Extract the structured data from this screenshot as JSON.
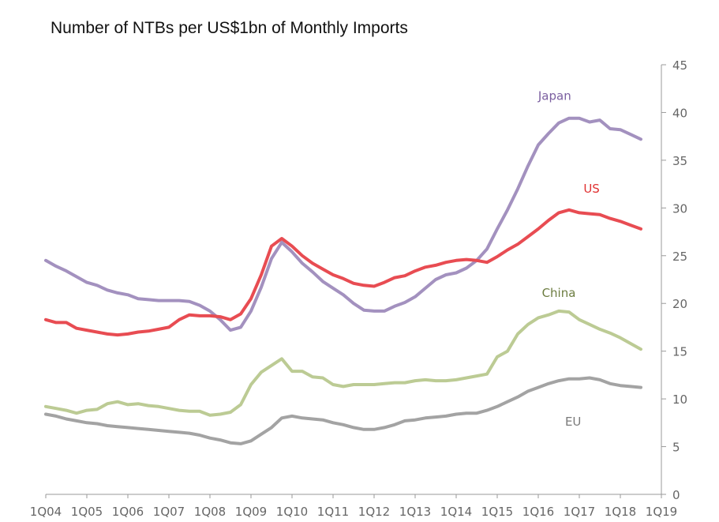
{
  "chart_data": {
    "type": "line",
    "title": "Number of NTBs per US$1bn of Monthly Imports",
    "xlabel": "",
    "ylabel": "",
    "ylim": [
      0,
      45
    ],
    "yticks": [
      "0",
      "5",
      "10",
      "15",
      "20",
      "25",
      "30",
      "35",
      "40",
      "45"
    ],
    "categories": [
      "1Q04",
      "1Q05",
      "1Q06",
      "1Q07",
      "1Q08",
      "1Q09",
      "1Q10",
      "1Q11",
      "1Q12",
      "1Q13",
      "1Q14",
      "1Q15",
      "1Q16",
      "1Q17",
      "1Q18",
      "1Q19"
    ],
    "x": [
      2004,
      2004.25,
      2004.5,
      2004.75,
      2005,
      2005.25,
      2005.5,
      2005.75,
      2006,
      2006.25,
      2006.5,
      2006.75,
      2007,
      2007.25,
      2007.5,
      2007.75,
      2008,
      2008.25,
      2008.5,
      2008.75,
      2009,
      2009.25,
      2009.5,
      2009.75,
      2010,
      2010.25,
      2010.5,
      2010.75,
      2011,
      2011.25,
      2011.5,
      2011.75,
      2012,
      2012.25,
      2012.5,
      2012.75,
      2013,
      2013.25,
      2013.5,
      2013.75,
      2014,
      2014.25,
      2014.5,
      2014.75,
      2015,
      2015.25,
      2015.5,
      2015.75,
      2016,
      2016.25,
      2016.5,
      2016.75,
      2017,
      2017.25,
      2017.5,
      2017.75,
      2018,
      2018.25,
      2018.5
    ],
    "series": [
      {
        "name": "Japan",
        "color": "#a391bf",
        "values": [
          24.5,
          23.9,
          23.4,
          22.8,
          22.2,
          21.9,
          21.4,
          21.1,
          20.9,
          20.5,
          20.4,
          20.3,
          20.3,
          20.3,
          20.2,
          19.8,
          19.2,
          18.3,
          17.2,
          17.5,
          19.2,
          21.7,
          24.7,
          26.4,
          25.4,
          24.2,
          23.3,
          22.3,
          21.6,
          20.9,
          20.0,
          19.3,
          19.2,
          19.2,
          19.7,
          20.1,
          20.7,
          21.6,
          22.5,
          23.0,
          23.2,
          23.7,
          24.5,
          25.7,
          27.8,
          29.8,
          32.0,
          34.4,
          36.6,
          37.8,
          38.9,
          39.4,
          39.4,
          39.0,
          39.2,
          38.3,
          38.2,
          37.7,
          37.2
        ]
      },
      {
        "name": "US",
        "color": "#e84c52",
        "values": [
          18.3,
          18.0,
          18.0,
          17.4,
          17.2,
          17.0,
          16.8,
          16.7,
          16.8,
          17.0,
          17.1,
          17.3,
          17.5,
          18.3,
          18.8,
          18.7,
          18.7,
          18.6,
          18.3,
          18.9,
          20.5,
          23.0,
          26.0,
          26.8,
          26.0,
          25.0,
          24.2,
          23.6,
          23.0,
          22.6,
          22.1,
          21.9,
          21.8,
          22.2,
          22.7,
          22.9,
          23.4,
          23.8,
          24.0,
          24.3,
          24.5,
          24.6,
          24.5,
          24.3,
          24.9,
          25.6,
          26.2,
          27.0,
          27.8,
          28.7,
          29.5,
          29.8,
          29.5,
          29.4,
          29.3,
          28.9,
          28.6,
          28.2,
          27.8
        ]
      },
      {
        "name": "China",
        "color": "#bccb94",
        "values": [
          9.2,
          9.0,
          8.8,
          8.5,
          8.8,
          8.9,
          9.5,
          9.7,
          9.4,
          9.5,
          9.3,
          9.2,
          9.0,
          8.8,
          8.7,
          8.7,
          8.3,
          8.4,
          8.6,
          9.4,
          11.5,
          12.8,
          13.5,
          14.2,
          12.9,
          12.9,
          12.3,
          12.2,
          11.5,
          11.3,
          11.5,
          11.5,
          11.5,
          11.6,
          11.7,
          11.7,
          11.9,
          12.0,
          11.9,
          11.9,
          12.0,
          12.2,
          12.4,
          12.6,
          14.4,
          15.0,
          16.8,
          17.8,
          18.5,
          18.8,
          19.2,
          19.1,
          18.3,
          17.8,
          17.3,
          16.9,
          16.4,
          15.8,
          15.2
        ]
      },
      {
        "name": "EU",
        "color": "#a3a3a3",
        "values": [
          8.4,
          8.2,
          7.9,
          7.7,
          7.5,
          7.4,
          7.2,
          7.1,
          7.0,
          6.9,
          6.8,
          6.7,
          6.6,
          6.5,
          6.4,
          6.2,
          5.9,
          5.7,
          5.4,
          5.3,
          5.6,
          6.3,
          7.0,
          8.0,
          8.2,
          8.0,
          7.9,
          7.8,
          7.5,
          7.3,
          7.0,
          6.8,
          6.8,
          7.0,
          7.3,
          7.7,
          7.8,
          8.0,
          8.1,
          8.2,
          8.4,
          8.5,
          8.5,
          8.8,
          9.2,
          9.7,
          10.2,
          10.8,
          11.2,
          11.6,
          11.9,
          12.1,
          12.1,
          12.2,
          12.0,
          11.6,
          11.4,
          11.3,
          11.2
        ]
      }
    ],
    "annotations": [
      "Japan",
      "US",
      "China",
      "EU"
    ]
  }
}
